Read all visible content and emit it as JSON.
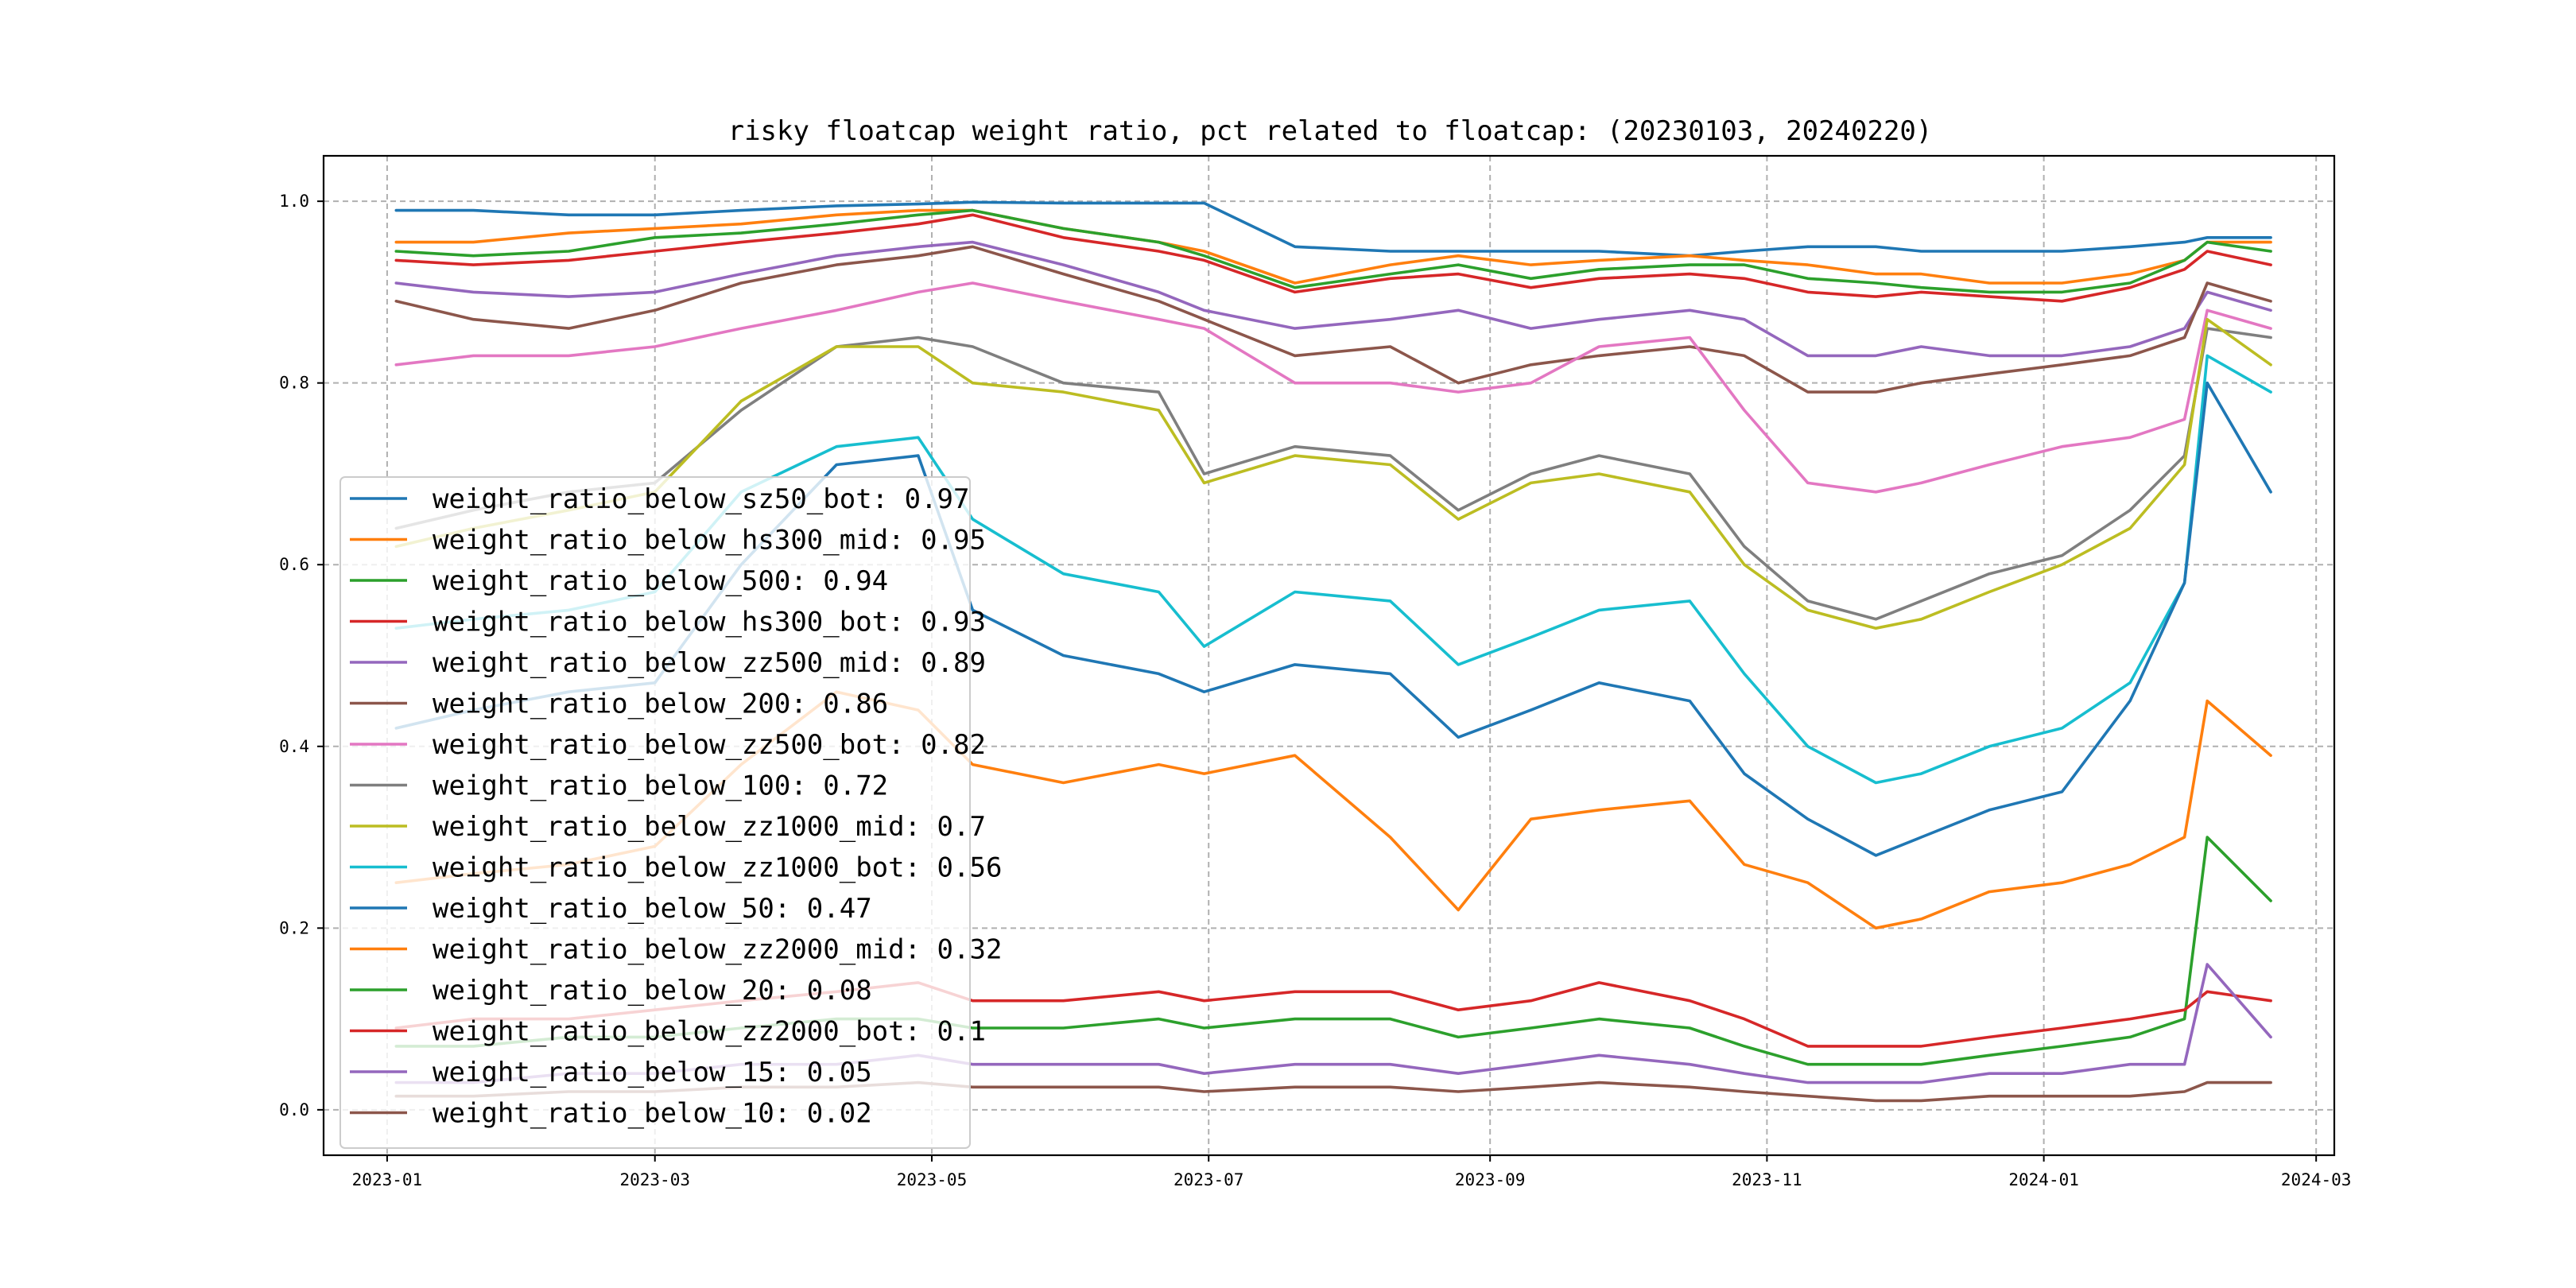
{
  "chart_data": {
    "type": "line",
    "title": "risky floatcap weight ratio, pct related to floatcap: (20230103, 20240220)",
    "xlabel": "",
    "ylabel": "",
    "x_range": [
      "2022-12-18",
      "2024-03-05"
    ],
    "ylim": [
      -0.05,
      1.05
    ],
    "x_ticks": [
      "2023-01",
      "2023-03",
      "2023-05",
      "2023-07",
      "2023-09",
      "2023-11",
      "2024-01",
      "2024-03"
    ],
    "y_ticks": [
      0.0,
      0.2,
      0.4,
      0.6,
      0.8,
      1.0
    ],
    "y_tick_labels": [
      "0.0",
      "0.2",
      "0.4",
      "0.6",
      "0.8",
      "1.0"
    ],
    "grid": true,
    "legend_position": "lower-left",
    "x": [
      "2023-01-03",
      "2023-01-20",
      "2023-02-10",
      "2023-03-01",
      "2023-03-20",
      "2023-04-10",
      "2023-04-28",
      "2023-05-10",
      "2023-05-30",
      "2023-06-20",
      "2023-06-30",
      "2023-07-20",
      "2023-08-10",
      "2023-08-25",
      "2023-09-10",
      "2023-09-25",
      "2023-10-15",
      "2023-10-27",
      "2023-11-10",
      "2023-11-25",
      "2023-12-05",
      "2023-12-20",
      "2024-01-05",
      "2024-01-20",
      "2024-02-01",
      "2024-02-06",
      "2024-02-20"
    ],
    "series": [
      {
        "name": "weight_ratio_below_sz50_bot: 0.97",
        "color": "#1f77b4",
        "values": [
          0.99,
          0.99,
          0.985,
          0.985,
          0.99,
          0.995,
          0.997,
          0.999,
          0.998,
          0.998,
          0.998,
          0.95,
          0.945,
          0.945,
          0.945,
          0.945,
          0.94,
          0.945,
          0.95,
          0.95,
          0.945,
          0.945,
          0.945,
          0.95,
          0.955,
          0.96,
          0.96
        ]
      },
      {
        "name": "weight_ratio_below_hs300_mid: 0.95",
        "color": "#ff7f0e",
        "values": [
          0.955,
          0.955,
          0.965,
          0.97,
          0.975,
          0.985,
          0.99,
          0.99,
          0.97,
          0.955,
          0.945,
          0.91,
          0.93,
          0.94,
          0.93,
          0.935,
          0.94,
          0.935,
          0.93,
          0.92,
          0.92,
          0.91,
          0.91,
          0.92,
          0.935,
          0.955,
          0.955
        ]
      },
      {
        "name": "weight_ratio_below_500: 0.94",
        "color": "#2ca02c",
        "values": [
          0.945,
          0.94,
          0.945,
          0.96,
          0.965,
          0.975,
          0.985,
          0.99,
          0.97,
          0.955,
          0.94,
          0.905,
          0.92,
          0.93,
          0.915,
          0.925,
          0.93,
          0.93,
          0.915,
          0.91,
          0.905,
          0.9,
          0.9,
          0.91,
          0.935,
          0.955,
          0.945
        ]
      },
      {
        "name": "weight_ratio_below_hs300_bot: 0.93",
        "color": "#d62728",
        "values": [
          0.935,
          0.93,
          0.935,
          0.945,
          0.955,
          0.965,
          0.975,
          0.985,
          0.96,
          0.945,
          0.935,
          0.9,
          0.915,
          0.92,
          0.905,
          0.915,
          0.92,
          0.915,
          0.9,
          0.895,
          0.9,
          0.895,
          0.89,
          0.905,
          0.925,
          0.945,
          0.93
        ]
      },
      {
        "name": "weight_ratio_below_zz500_mid: 0.89",
        "color": "#9467bd",
        "values": [
          0.91,
          0.9,
          0.895,
          0.9,
          0.92,
          0.94,
          0.95,
          0.955,
          0.93,
          0.9,
          0.88,
          0.86,
          0.87,
          0.88,
          0.86,
          0.87,
          0.88,
          0.87,
          0.83,
          0.83,
          0.84,
          0.83,
          0.83,
          0.84,
          0.86,
          0.9,
          0.88
        ]
      },
      {
        "name": "weight_ratio_below_200: 0.86",
        "color": "#8c564b",
        "values": [
          0.89,
          0.87,
          0.86,
          0.88,
          0.91,
          0.93,
          0.94,
          0.95,
          0.92,
          0.89,
          0.87,
          0.83,
          0.84,
          0.8,
          0.82,
          0.83,
          0.84,
          0.83,
          0.79,
          0.79,
          0.8,
          0.81,
          0.82,
          0.83,
          0.85,
          0.91,
          0.89
        ]
      },
      {
        "name": "weight_ratio_below_zz500_bot: 0.82",
        "color": "#e377c2",
        "values": [
          0.82,
          0.83,
          0.83,
          0.84,
          0.86,
          0.88,
          0.9,
          0.91,
          0.89,
          0.87,
          0.86,
          0.8,
          0.8,
          0.79,
          0.8,
          0.84,
          0.85,
          0.77,
          0.69,
          0.68,
          0.69,
          0.71,
          0.73,
          0.74,
          0.76,
          0.88,
          0.86
        ]
      },
      {
        "name": "weight_ratio_below_100: 0.72",
        "color": "#7f7f7f",
        "values": [
          0.64,
          0.66,
          0.68,
          0.69,
          0.77,
          0.84,
          0.85,
          0.84,
          0.8,
          0.79,
          0.7,
          0.73,
          0.72,
          0.66,
          0.7,
          0.72,
          0.7,
          0.62,
          0.56,
          0.54,
          0.56,
          0.59,
          0.61,
          0.66,
          0.72,
          0.86,
          0.85
        ]
      },
      {
        "name": "weight_ratio_below_zz1000_mid: 0.7",
        "color": "#bcbd22",
        "values": [
          0.62,
          0.64,
          0.66,
          0.68,
          0.78,
          0.84,
          0.84,
          0.8,
          0.79,
          0.77,
          0.69,
          0.72,
          0.71,
          0.65,
          0.69,
          0.7,
          0.68,
          0.6,
          0.55,
          0.53,
          0.54,
          0.57,
          0.6,
          0.64,
          0.71,
          0.87,
          0.82
        ]
      },
      {
        "name": "weight_ratio_below_zz1000_bot: 0.56",
        "color": "#17becf",
        "values": [
          0.53,
          0.54,
          0.55,
          0.57,
          0.68,
          0.73,
          0.74,
          0.65,
          0.59,
          0.57,
          0.51,
          0.57,
          0.56,
          0.49,
          0.52,
          0.55,
          0.56,
          0.48,
          0.4,
          0.36,
          0.37,
          0.4,
          0.42,
          0.47,
          0.58,
          0.83,
          0.79
        ]
      },
      {
        "name": "weight_ratio_below_50: 0.47",
        "color": "#1f77b4",
        "values": [
          0.42,
          0.44,
          0.46,
          0.47,
          0.6,
          0.71,
          0.72,
          0.55,
          0.5,
          0.48,
          0.46,
          0.49,
          0.48,
          0.41,
          0.44,
          0.47,
          0.45,
          0.37,
          0.32,
          0.28,
          0.3,
          0.33,
          0.35,
          0.45,
          0.58,
          0.8,
          0.68
        ]
      },
      {
        "name": "weight_ratio_below_zz2000_mid: 0.32",
        "color": "#ff7f0e",
        "values": [
          0.25,
          0.26,
          0.27,
          0.29,
          0.38,
          0.46,
          0.44,
          0.38,
          0.36,
          0.38,
          0.37,
          0.39,
          0.3,
          0.22,
          0.32,
          0.33,
          0.34,
          0.27,
          0.25,
          0.2,
          0.21,
          0.24,
          0.25,
          0.27,
          0.3,
          0.45,
          0.39
        ]
      },
      {
        "name": "weight_ratio_below_20: 0.08",
        "color": "#2ca02c",
        "values": [
          0.07,
          0.07,
          0.08,
          0.08,
          0.09,
          0.1,
          0.1,
          0.09,
          0.09,
          0.1,
          0.09,
          0.1,
          0.1,
          0.08,
          0.09,
          0.1,
          0.09,
          0.07,
          0.05,
          0.05,
          0.05,
          0.06,
          0.07,
          0.08,
          0.1,
          0.3,
          0.23
        ]
      },
      {
        "name": "weight_ratio_below_zz2000_bot: 0.1",
        "color": "#d62728",
        "values": [
          0.09,
          0.1,
          0.1,
          0.11,
          0.12,
          0.13,
          0.14,
          0.12,
          0.12,
          0.13,
          0.12,
          0.13,
          0.13,
          0.11,
          0.12,
          0.14,
          0.12,
          0.1,
          0.07,
          0.07,
          0.07,
          0.08,
          0.09,
          0.1,
          0.11,
          0.13,
          0.12
        ]
      },
      {
        "name": "weight_ratio_below_15: 0.05",
        "color": "#9467bd",
        "values": [
          0.03,
          0.03,
          0.04,
          0.04,
          0.05,
          0.05,
          0.06,
          0.05,
          0.05,
          0.05,
          0.04,
          0.05,
          0.05,
          0.04,
          0.05,
          0.06,
          0.05,
          0.04,
          0.03,
          0.03,
          0.03,
          0.04,
          0.04,
          0.05,
          0.05,
          0.16,
          0.08
        ]
      },
      {
        "name": "weight_ratio_below_10: 0.02",
        "color": "#8c564b",
        "values": [
          0.015,
          0.015,
          0.02,
          0.02,
          0.025,
          0.025,
          0.03,
          0.025,
          0.025,
          0.025,
          0.02,
          0.025,
          0.025,
          0.02,
          0.025,
          0.03,
          0.025,
          0.02,
          0.015,
          0.01,
          0.01,
          0.015,
          0.015,
          0.015,
          0.02,
          0.03,
          0.03
        ]
      }
    ]
  }
}
